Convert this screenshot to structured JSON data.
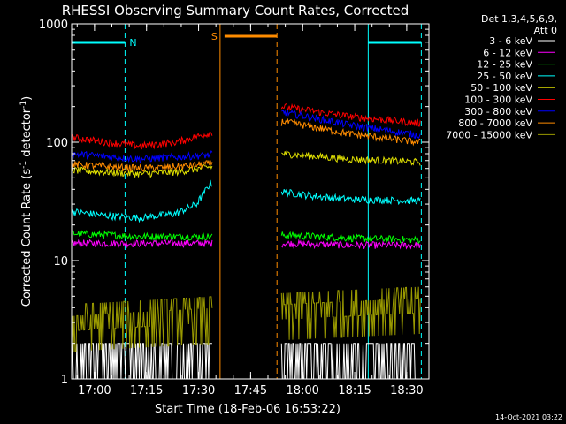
{
  "chart_data": {
    "type": "line",
    "title": "RHESSI Observing Summary Count Rates, Corrected",
    "xlabel": "Start Time (18-Feb-06 16:53:22)",
    "ylabel_main": "Corrected Count Rate (s",
    "ylabel_sup1": "-1",
    "ylabel_mid": " detector",
    "ylabel_sup2": "-1",
    "ylabel_end": ")",
    "y_scale": "log",
    "ylim": [
      1,
      1000
    ],
    "xlim_min": [
      0,
      103
    ],
    "x_unit": "minutes since 16:53:22",
    "y_ticks": [
      {
        "value": 1,
        "label": "1"
      },
      {
        "value": 10,
        "label": "10"
      },
      {
        "value": 100,
        "label": "100"
      },
      {
        "value": 1000,
        "label": "1000"
      }
    ],
    "x_ticks": [
      {
        "value": 6.6,
        "label": "17:00"
      },
      {
        "value": 21.6,
        "label": "17:15"
      },
      {
        "value": 36.6,
        "label": "17:30"
      },
      {
        "value": 51.6,
        "label": "17:45"
      },
      {
        "value": 66.6,
        "label": "18:00"
      },
      {
        "value": 81.6,
        "label": "18:15"
      },
      {
        "value": 96.6,
        "label": "18:30"
      }
    ],
    "legend": {
      "header1": "Det 1,3,4,5,6,9,",
      "header2": "Att 0",
      "placement": "right",
      "entries": [
        {
          "label": "3 - 6 keV",
          "color": "#ffffff"
        },
        {
          "label": "6 - 12 keV",
          "color": "#ff00ff"
        },
        {
          "label": "12 - 25 keV",
          "color": "#00ff00"
        },
        {
          "label": "25 - 50 keV",
          "color": "#00ffff"
        },
        {
          "label": "50 - 100 keV",
          "color": "#dddd00"
        },
        {
          "label": "100 - 300 keV",
          "color": "#ff0000"
        },
        {
          "label": "300 - 800 keV",
          "color": "#0000ff"
        },
        {
          "label": "800 - 7000 keV",
          "color": "#ff8c00"
        },
        {
          "label": "7000 - 15000 keV",
          "color": "#999900"
        }
      ]
    },
    "annotations": {
      "night_label": "N",
      "saa_label": "S",
      "night_intervals": [
        [
          0,
          15.4
        ],
        [
          85.5,
          100.8
        ]
      ],
      "saa_interval": [
        42.8,
        59.2
      ]
    },
    "segments": [
      {
        "x_start": 0,
        "x_end": 40.5
      },
      {
        "x_start": 60.5,
        "x_end": 100.5
      }
    ],
    "series": [
      {
        "name": "3 - 6 keV",
        "color": "#ffffff",
        "values": [
          [
            0,
            1.8
          ],
          [
            40,
            1.8
          ],
          [
            61,
            2.0
          ],
          [
            100,
            2.0
          ]
        ]
      },
      {
        "name": "6 - 12 keV",
        "color": "#ff00ff",
        "values": [
          [
            0,
            14
          ],
          [
            20,
            14
          ],
          [
            40,
            14
          ],
          [
            61,
            14
          ],
          [
            80,
            13.5
          ],
          [
            100,
            13.5
          ]
        ]
      },
      {
        "name": "12 - 25 keV",
        "color": "#00ff00",
        "values": [
          [
            0,
            17
          ],
          [
            20,
            16
          ],
          [
            40,
            16
          ],
          [
            61,
            16.5
          ],
          [
            80,
            15.5
          ],
          [
            100,
            15
          ]
        ]
      },
      {
        "name": "25 - 50 keV",
        "color": "#00ffff",
        "values": [
          [
            0,
            26
          ],
          [
            10,
            24
          ],
          [
            20,
            23
          ],
          [
            30,
            25
          ],
          [
            36,
            30
          ],
          [
            40,
            45
          ],
          [
            61,
            38
          ],
          [
            70,
            35
          ],
          [
            80,
            33
          ],
          [
            100,
            32
          ]
        ]
      },
      {
        "name": "50 - 100 keV",
        "color": "#dddd00",
        "values": [
          [
            0,
            58
          ],
          [
            20,
            54
          ],
          [
            30,
            56
          ],
          [
            40,
            62
          ],
          [
            61,
            80
          ],
          [
            80,
            72
          ],
          [
            100,
            68
          ]
        ]
      },
      {
        "name": "100 - 300 keV",
        "color": "#ff0000",
        "values": [
          [
            0,
            110
          ],
          [
            10,
            100
          ],
          [
            20,
            93
          ],
          [
            30,
            100
          ],
          [
            40,
            120
          ],
          [
            61,
            200
          ],
          [
            80,
            165
          ],
          [
            100,
            145
          ]
        ]
      },
      {
        "name": "300 - 800 keV",
        "color": "#0000ff",
        "values": [
          [
            0,
            80
          ],
          [
            20,
            72
          ],
          [
            30,
            75
          ],
          [
            40,
            78
          ],
          [
            61,
            180
          ],
          [
            80,
            140
          ],
          [
            100,
            115
          ]
        ]
      },
      {
        "name": "800 - 7000 keV",
        "color": "#ff8c00",
        "values": [
          [
            0,
            65
          ],
          [
            20,
            60
          ],
          [
            30,
            62
          ],
          [
            40,
            66
          ],
          [
            61,
            150
          ],
          [
            80,
            118
          ],
          [
            100,
            100
          ]
        ]
      },
      {
        "name": "7000 - 15000 keV",
        "color": "#999900",
        "values": [
          [
            0,
            3.2
          ],
          [
            20,
            3.3
          ],
          [
            40,
            3.6
          ],
          [
            61,
            4.0
          ],
          [
            80,
            4.0
          ],
          [
            100,
            4.2
          ]
        ]
      }
    ]
  },
  "footer": {
    "timestamp": "14-Oct-2021 03:22"
  }
}
